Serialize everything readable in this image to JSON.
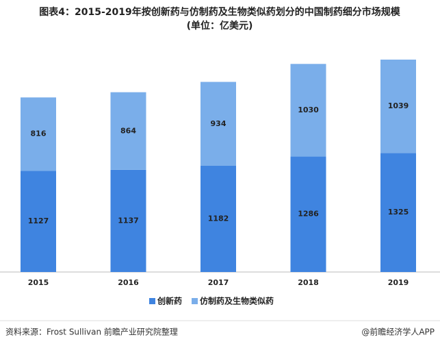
{
  "chart_data": {
    "type": "stacked_bar",
    "title": "图表4：2015-2019年按创新药与仿制药及生物类似药划分的中国制药细分市场规模",
    "subtitle": "(单位：亿美元)",
    "categories": [
      "2015",
      "2016",
      "2017",
      "2018",
      "2019"
    ],
    "series": [
      {
        "name": "创新药",
        "color": "#3f84e0",
        "values": [
          1127,
          1137,
          1182,
          1286,
          1325
        ]
      },
      {
        "name": "仿制药及生物类似药",
        "color": "#7aaeea",
        "values": [
          816,
          864,
          934,
          1030,
          1039
        ]
      }
    ],
    "source": "资料来源：Frost Sullivan   前瞻产业研究院整理",
    "credit": "@前瞻经济学人APP"
  }
}
